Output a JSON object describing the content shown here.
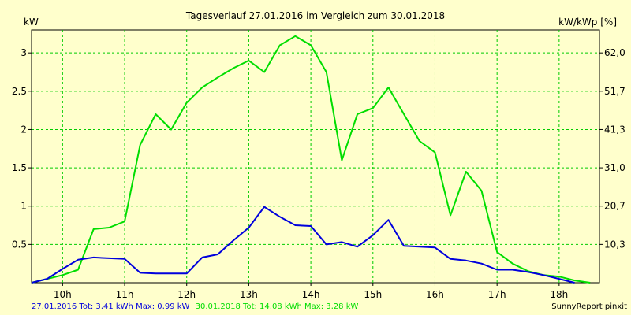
{
  "chart_data": {
    "type": "line",
    "title": "Tagesverlauf 27.01.2016 im Vergleich zum 30.01.2018",
    "ylabel": "kW",
    "ylabel_right": "kW/kWp [%]",
    "xlim": [
      9.5,
      18.65
    ],
    "ylim": [
      0,
      3.3
    ],
    "grid": true,
    "x_ticks": [
      10,
      11,
      12,
      13,
      14,
      15,
      16,
      17,
      18
    ],
    "x_tick_labels": [
      "10h",
      "11h",
      "12h",
      "13h",
      "14h",
      "15h",
      "16h",
      "17h",
      "18h"
    ],
    "y_ticks": [
      0.5,
      1,
      1.5,
      2,
      2.5,
      3
    ],
    "y_tick_labels": [
      "0.5",
      "1",
      "1.5",
      "2",
      "2.5",
      "3"
    ],
    "y_right_ticks": [
      0.5,
      1,
      1.5,
      2,
      2.5,
      3
    ],
    "y_right_tick_labels": [
      "10,3",
      "20,7",
      "31,0",
      "41,3",
      "51,7",
      "62,0"
    ],
    "series": [
      {
        "color": "#00dd00",
        "x": [
          9.5,
          9.75,
          10.0,
          10.25,
          10.5,
          10.75,
          11.0,
          11.25,
          11.5,
          11.75,
          12.0,
          12.25,
          12.5,
          12.75,
          13.0,
          13.25,
          13.5,
          13.75,
          14.0,
          14.25,
          14.5,
          14.75,
          15.0,
          15.25,
          15.5,
          15.75,
          16.0,
          16.25,
          16.5,
          16.75,
          17.0,
          17.25,
          17.5,
          17.75,
          18.0,
          18.25,
          18.5
        ],
        "y": [
          0.0,
          0.05,
          0.1,
          0.17,
          0.7,
          0.72,
          0.8,
          1.8,
          2.2,
          2.0,
          2.35,
          2.55,
          2.68,
          2.8,
          2.9,
          2.75,
          3.1,
          3.22,
          3.1,
          2.75,
          1.6,
          2.2,
          2.28,
          2.55,
          2.2,
          1.85,
          1.7,
          0.88,
          1.45,
          1.2,
          0.4,
          0.25,
          0.15,
          0.1,
          0.08,
          0.03,
          0.0
        ]
      },
      {
        "color": "#0000dd",
        "x": [
          9.5,
          9.75,
          10.0,
          10.25,
          10.5,
          10.75,
          11.0,
          11.25,
          11.5,
          11.75,
          12.0,
          12.25,
          12.5,
          12.75,
          13.0,
          13.25,
          13.5,
          13.75,
          14.0,
          14.25,
          14.5,
          14.75,
          15.0,
          15.25,
          15.5,
          15.75,
          16.0,
          16.25,
          16.5,
          16.75,
          17.0,
          17.25,
          17.5,
          17.75,
          18.0,
          18.25
        ],
        "y": [
          0.0,
          0.05,
          0.18,
          0.3,
          0.33,
          0.32,
          0.31,
          0.13,
          0.12,
          0.12,
          0.12,
          0.33,
          0.37,
          0.55,
          0.72,
          0.99,
          0.86,
          0.75,
          0.74,
          0.5,
          0.53,
          0.47,
          0.62,
          0.82,
          0.48,
          0.47,
          0.46,
          0.31,
          0.29,
          0.25,
          0.17,
          0.17,
          0.14,
          0.1,
          0.05,
          0.0
        ]
      }
    ]
  },
  "footer": {
    "series1_text": "27.01.2016 Tot: 3,41 kWh Max: 0,99 kW",
    "series2_text": "30.01.2018 Tot: 14,08 kWh Max: 3,28 kW",
    "brand_text": "SunnyReport pinxit",
    "series1_color": "#0000dd",
    "series2_color": "#00dd00"
  }
}
